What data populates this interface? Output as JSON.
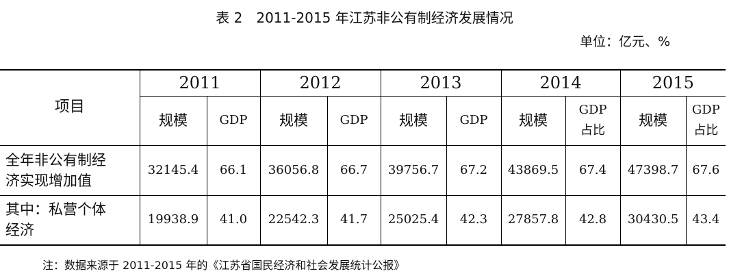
{
  "title": "表 2　2011-2015 年江苏非公有制经济发展情况",
  "unit": "单位：亿元、%",
  "table": {
    "item_header": "项目",
    "years": [
      "2011",
      "2012",
      "2013",
      "2014",
      "2015"
    ],
    "subheaders": [
      "规模",
      "GDP",
      "规模",
      "GDP",
      "规模",
      "GDP",
      "规模",
      "GDP\n占比",
      "规模",
      "GDP\n占比"
    ],
    "rows": [
      {
        "label": "全年非公有制经\n济实现增加值",
        "values": [
          "32145.4",
          "66.1",
          "36056.8",
          "66.7",
          "39756.7",
          "67.2",
          "43869.5",
          "67.4",
          "47398.7",
          "67.6"
        ]
      },
      {
        "label": "其中：私营个体\n经济",
        "values": [
          "19938.9",
          "41.0",
          "22542.3",
          "41.7",
          "25025.4",
          "42.3",
          "27857.8",
          "42.8",
          "30430.5",
          "43.4"
        ]
      }
    ]
  },
  "note": "注：数据来源于 2011-2015 年的《江苏省国民经济和社会发展统计公报》"
}
